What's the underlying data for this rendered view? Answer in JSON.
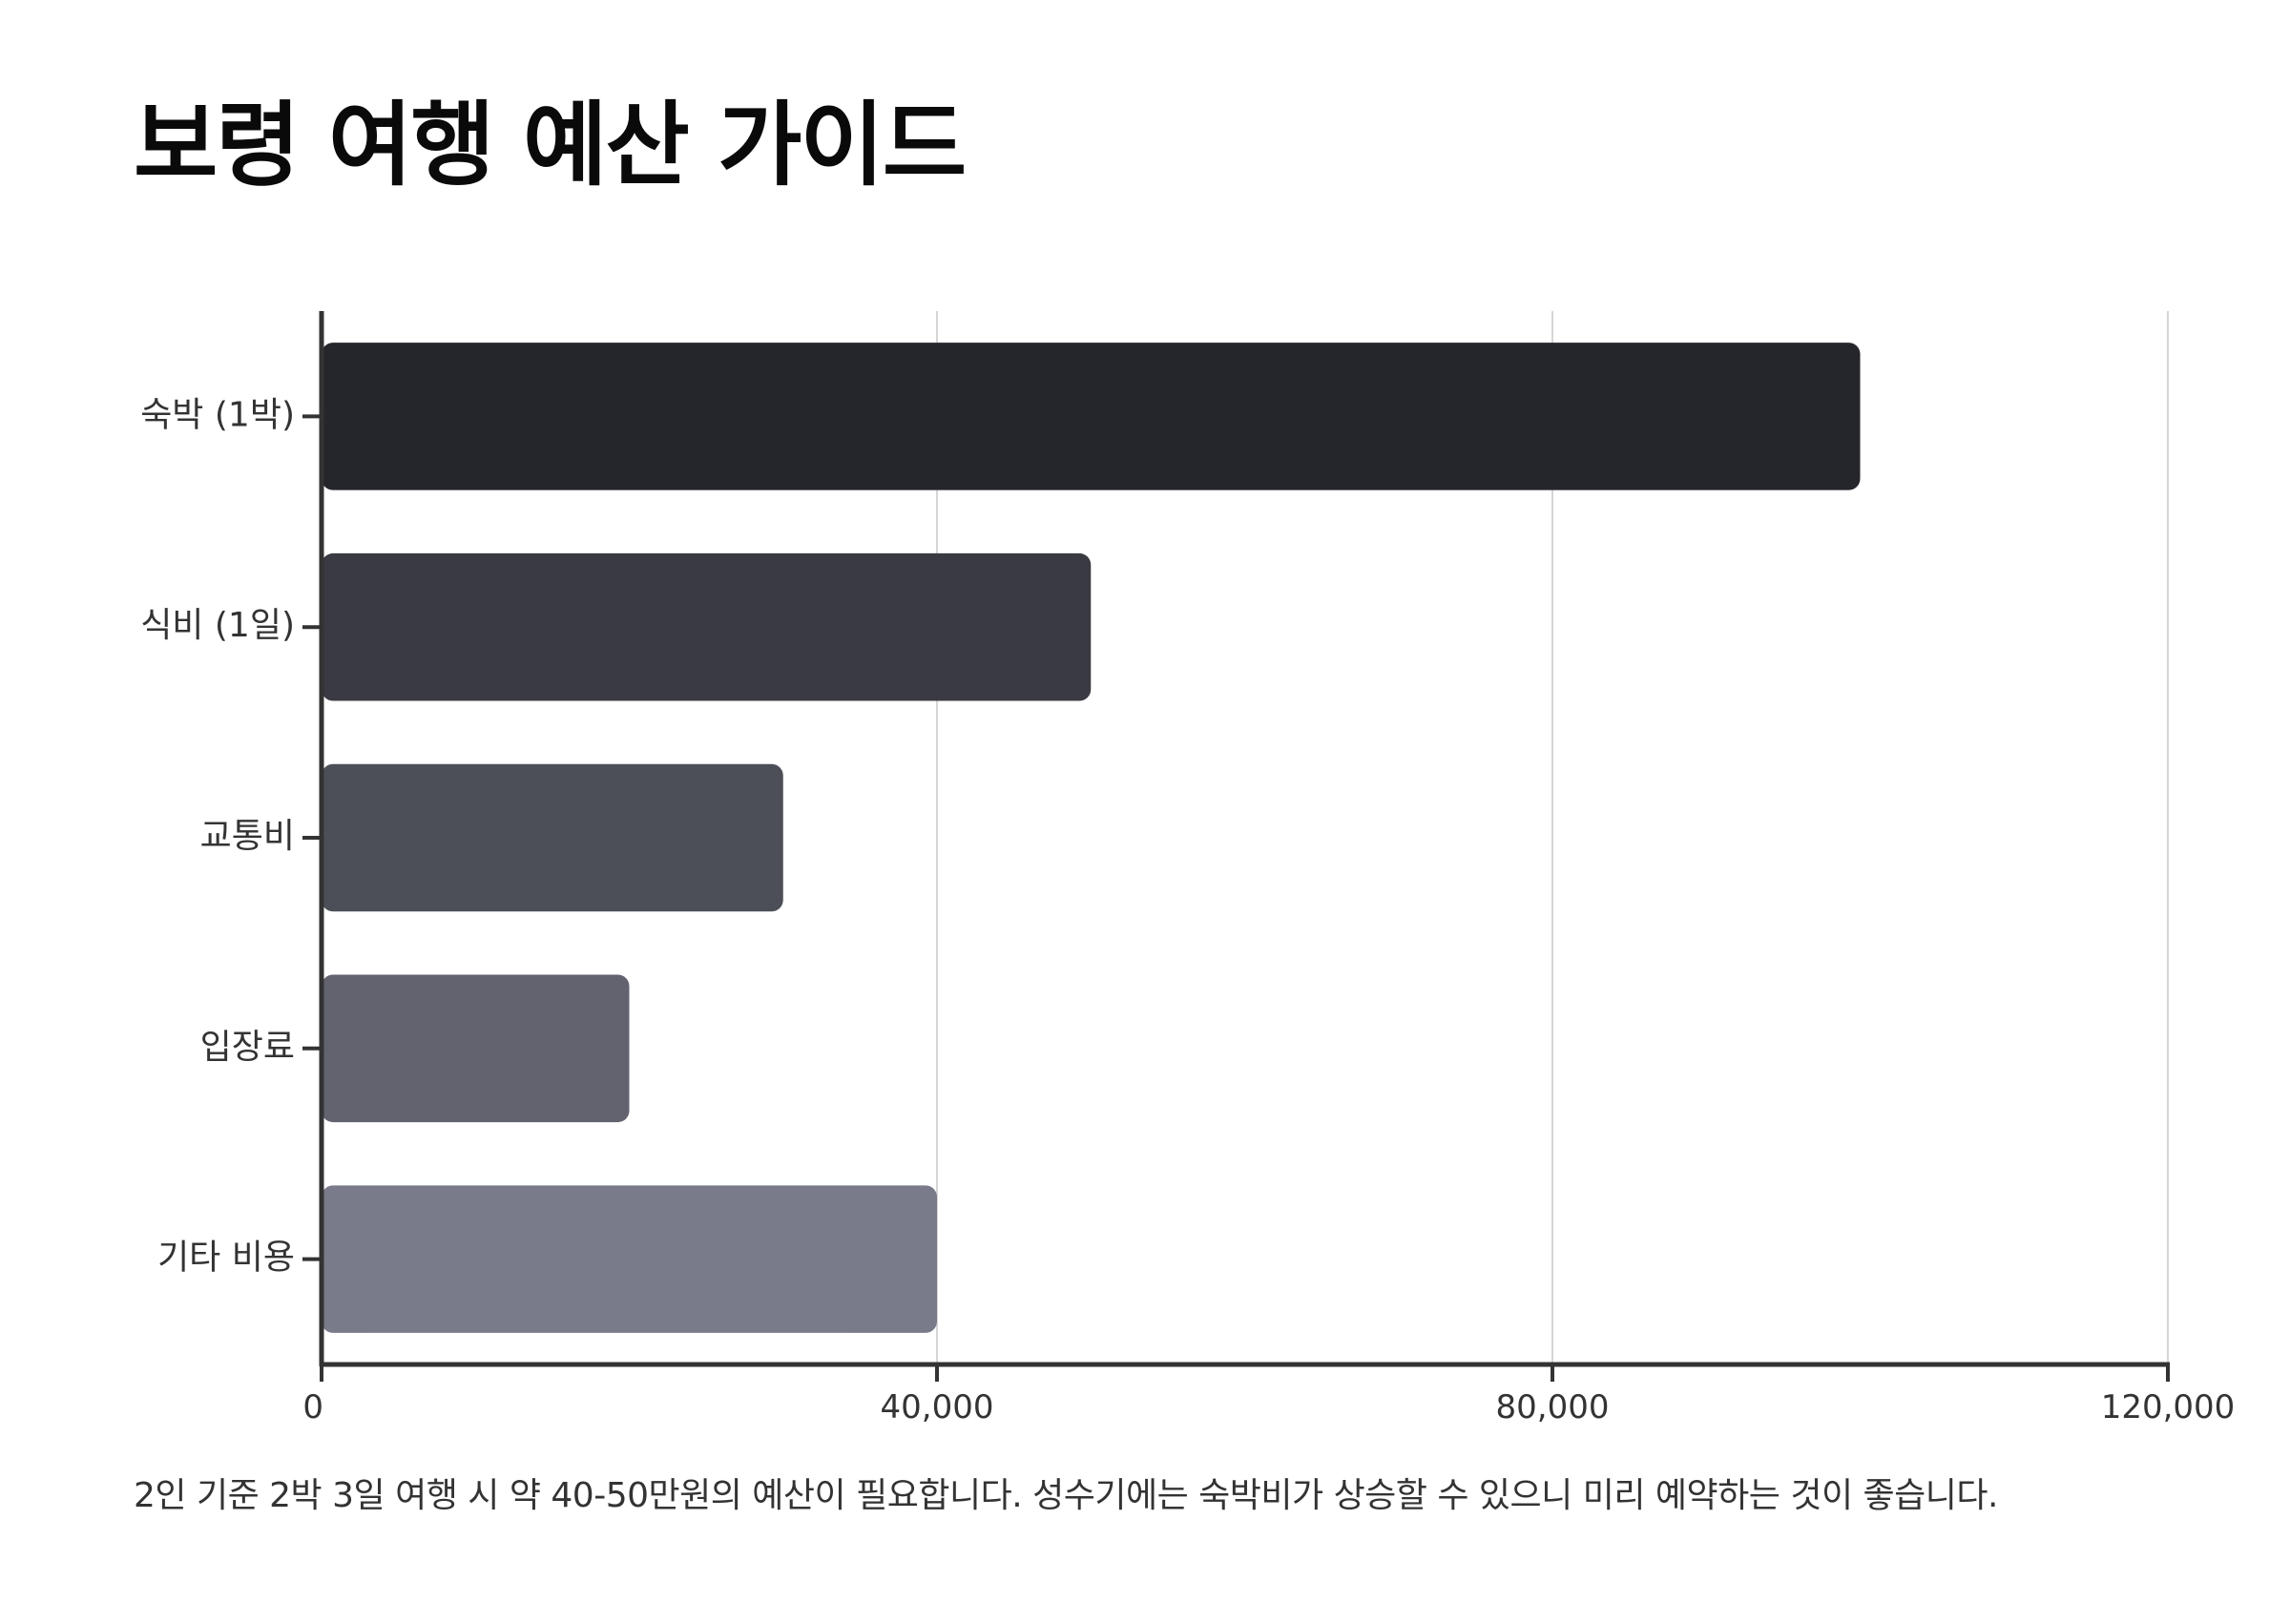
{
  "chart_data": {
    "type": "bar",
    "orientation": "horizontal",
    "title": "보령 여행 예산 가이드",
    "categories": [
      "숙박 (1박)",
      "식비 (1일)",
      "교통비",
      "입장료",
      "기타 비용"
    ],
    "values": [
      100000,
      50000,
      30000,
      20000,
      40000
    ],
    "colors": [
      "#25262b",
      "#393a42",
      "#4d4f58",
      "#62636f",
      "#7a7b8a"
    ],
    "xlim": [
      0,
      120000
    ],
    "xticks": [
      0,
      40000,
      80000,
      120000
    ],
    "xtick_labels": [
      "0",
      "40,000",
      "80,000",
      "120,000"
    ],
    "grid": "vertical",
    "legend": "none",
    "xlabel": "",
    "ylabel": "",
    "annotation": "2인 기준 2박 3일 여행 시 약 40-50만원의 예산이 필요합니다. 성수기에는 숙박비가 상승할 수 있으니 미리 예약하는 것이 좋습니다."
  }
}
